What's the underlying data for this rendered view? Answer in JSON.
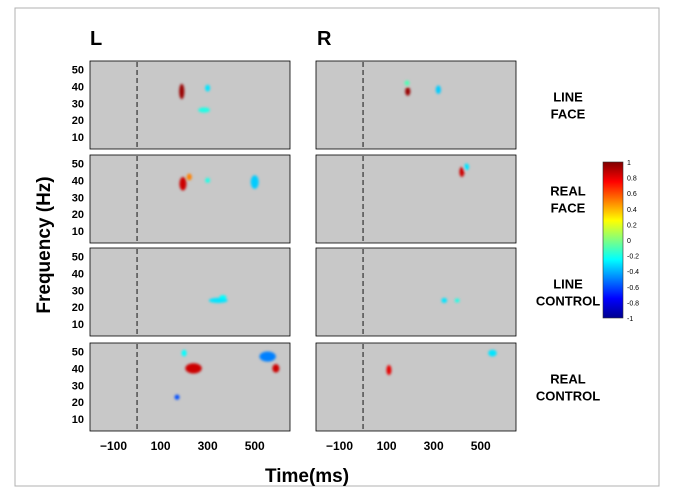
{
  "chart_data": {
    "type": "heatmap",
    "hemispheres": [
      "L",
      "R"
    ],
    "conditions": [
      {
        "key": "line_face",
        "label_lines": [
          "LINE",
          "FACE"
        ]
      },
      {
        "key": "real_face",
        "label_lines": [
          "REAL",
          "FACE"
        ]
      },
      {
        "key": "line_control",
        "label_lines": [
          "LINE",
          "CONTROL"
        ]
      },
      {
        "key": "real_control",
        "label_lines": [
          "REAL",
          "CONTROL"
        ]
      }
    ],
    "xlabel": "Time(ms)",
    "ylabel": "Frequency (Hz)",
    "xlim": [
      -200,
      650
    ],
    "ylim": [
      3,
      55
    ],
    "xticks": [
      -100,
      100,
      300,
      500
    ],
    "xtick_labels": [
      "−100",
      "100",
      "300",
      "500"
    ],
    "yticks": [
      10,
      20,
      30,
      40,
      50
    ],
    "stimulus_onset_ms": 0,
    "background_color": "#c8c8c8",
    "colorbar": {
      "ticks": [
        1,
        0.8,
        0.6,
        0.4,
        0.2,
        0,
        -0.2,
        -0.4,
        -0.6,
        -0.8,
        -1
      ],
      "tick_labels": [
        "1",
        "0.8",
        "0.6",
        "0.4",
        "0.2",
        "0",
        "-0.2",
        "-0.4",
        "-0.6",
        "-0.8",
        "-1"
      ],
      "range": [
        -1,
        1
      ],
      "colormap": "jet"
    },
    "blobs": [
      {
        "hemi": "L",
        "cond": "line_face",
        "t": 190,
        "t_span": 22,
        "f": 37,
        "f_span": 9,
        "value": 0.95
      },
      {
        "hemi": "L",
        "cond": "line_face",
        "t": 300,
        "t_span": 16,
        "f": 39,
        "f_span": 4,
        "value": -0.3
      },
      {
        "hemi": "L",
        "cond": "line_face",
        "t": 285,
        "t_span": 50,
        "f": 26,
        "f_span": 3,
        "value": -0.2
      },
      {
        "hemi": "R",
        "cond": "line_face",
        "t": 190,
        "t_span": 22,
        "f": 37,
        "f_span": 5,
        "value": 0.95
      },
      {
        "hemi": "R",
        "cond": "line_face",
        "t": 187,
        "t_span": 12,
        "f": 42,
        "f_span": 3,
        "value": -0.1
      },
      {
        "hemi": "R",
        "cond": "line_face",
        "t": 320,
        "t_span": 22,
        "f": 38,
        "f_span": 5,
        "value": -0.35
      },
      {
        "hemi": "L",
        "cond": "real_face",
        "t": 195,
        "t_span": 30,
        "f": 38,
        "f_span": 8,
        "value": 0.85
      },
      {
        "hemi": "L",
        "cond": "real_face",
        "t": 222,
        "t_span": 20,
        "f": 42,
        "f_span": 4,
        "value": 0.5
      },
      {
        "hemi": "L",
        "cond": "real_face",
        "t": 300,
        "t_span": 14,
        "f": 40,
        "f_span": 3,
        "value": -0.2
      },
      {
        "hemi": "L",
        "cond": "real_face",
        "t": 500,
        "t_span": 34,
        "f": 39,
        "f_span": 8,
        "value": -0.35
      },
      {
        "hemi": "R",
        "cond": "real_face",
        "t": 420,
        "t_span": 16,
        "f": 45,
        "f_span": 6,
        "value": 0.85
      },
      {
        "hemi": "R",
        "cond": "real_face",
        "t": 440,
        "t_span": 16,
        "f": 48,
        "f_span": 4,
        "value": -0.3
      },
      {
        "hemi": "L",
        "cond": "line_control",
        "t": 345,
        "t_span": 80,
        "f": 24,
        "f_span": 3,
        "value": -0.3
      },
      {
        "hemi": "L",
        "cond": "line_control",
        "t": 365,
        "t_span": 30,
        "f": 26,
        "f_span": 2,
        "value": -0.25
      },
      {
        "hemi": "R",
        "cond": "line_control",
        "t": 345,
        "t_span": 24,
        "f": 24,
        "f_span": 3,
        "value": -0.3
      },
      {
        "hemi": "R",
        "cond": "line_control",
        "t": 400,
        "t_span": 8,
        "f": 24,
        "f_span": 2,
        "value": -0.2
      },
      {
        "hemi": "L",
        "cond": "real_control",
        "t": 200,
        "t_span": 18,
        "f": 49,
        "f_span": 4,
        "value": -0.25
      },
      {
        "hemi": "L",
        "cond": "real_control",
        "t": 240,
        "t_span": 70,
        "f": 40,
        "f_span": 6,
        "value": 0.85
      },
      {
        "hemi": "L",
        "cond": "real_control",
        "t": 170,
        "t_span": 18,
        "f": 23,
        "f_span": 3,
        "value": -0.6
      },
      {
        "hemi": "L",
        "cond": "real_control",
        "t": 555,
        "t_span": 70,
        "f": 47,
        "f_span": 6,
        "value": -0.5
      },
      {
        "hemi": "L",
        "cond": "real_control",
        "t": 590,
        "t_span": 30,
        "f": 40,
        "f_span": 5,
        "value": 0.85
      },
      {
        "hemi": "R",
        "cond": "real_control",
        "t": 110,
        "t_span": 18,
        "f": 39,
        "f_span": 6,
        "value": 0.8
      },
      {
        "hemi": "R",
        "cond": "real_control",
        "t": 550,
        "t_span": 36,
        "f": 49,
        "f_span": 4,
        "value": -0.3
      }
    ]
  }
}
